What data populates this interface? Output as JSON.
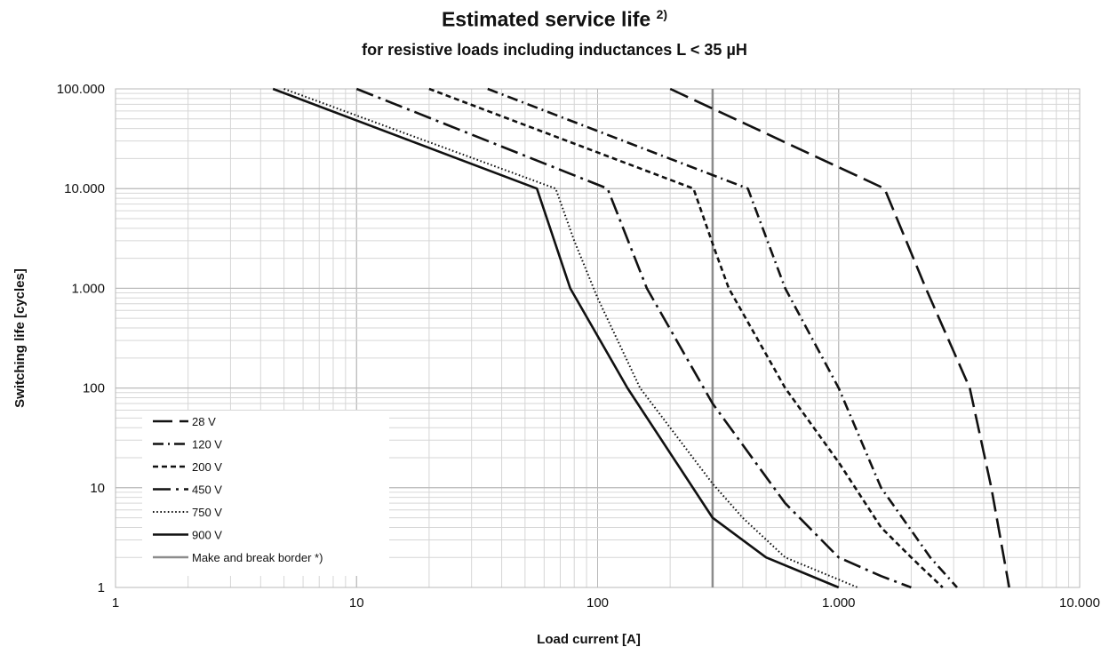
{
  "chart_data": {
    "type": "line",
    "title": "Estimated service life",
    "title_footnote": "2)",
    "subtitle": "for resistive loads including inductances L < 35 µH",
    "xlabel": "Load current [A]",
    "ylabel": "Switching life [cycles]",
    "xscale": "log",
    "yscale": "log",
    "xlim": [
      1,
      10000
    ],
    "ylim": [
      1,
      100000
    ],
    "x_ticks": [
      1,
      10,
      100,
      1000,
      10000
    ],
    "x_tick_labels": [
      "1",
      "10",
      "100",
      "1.000",
      "10.000"
    ],
    "y_ticks": [
      1,
      10,
      100,
      1000,
      10000,
      100000
    ],
    "y_tick_labels": [
      "1",
      "10",
      "100",
      "1.000",
      "10.000",
      "100.000"
    ],
    "grid": true,
    "legend_position": "bottom-left",
    "series": [
      {
        "name": "28 V",
        "dash": "long-dash",
        "points": [
          [
            200,
            100000
          ],
          [
            1550,
            10000
          ],
          [
            2300,
            1000
          ],
          [
            3500,
            100
          ],
          [
            4300,
            10
          ],
          [
            5100,
            1
          ]
        ]
      },
      {
        "name": "120 V",
        "dash": "dash-dot",
        "points": [
          [
            35,
            100000
          ],
          [
            420,
            10000
          ],
          [
            600,
            1000
          ],
          [
            1000,
            100
          ],
          [
            1500,
            10
          ],
          [
            2400,
            2
          ],
          [
            3100,
            1
          ]
        ]
      },
      {
        "name": "200 V",
        "dash": "short-dash",
        "points": [
          [
            20,
            100000
          ],
          [
            250,
            10000
          ],
          [
            305,
            2500
          ],
          [
            350,
            1000
          ],
          [
            600,
            100
          ],
          [
            1000,
            18
          ],
          [
            1500,
            4
          ],
          [
            2000,
            2
          ],
          [
            2700,
            1
          ]
        ]
      },
      {
        "name": "450 V",
        "dash": "long-dash-dot",
        "points": [
          [
            10,
            100000
          ],
          [
            110,
            10000
          ],
          [
            160,
            1000
          ],
          [
            300,
            70
          ],
          [
            600,
            7
          ],
          [
            1000,
            2
          ],
          [
            1500,
            1.3
          ],
          [
            2000,
            1
          ]
        ]
      },
      {
        "name": "750 V",
        "dash": "dotted",
        "points": [
          [
            5,
            100000
          ],
          [
            67,
            10000
          ],
          [
            80,
            3000
          ],
          [
            100,
            800
          ],
          [
            150,
            100
          ],
          [
            300,
            11
          ],
          [
            400,
            5
          ],
          [
            600,
            2
          ],
          [
            1200,
            1
          ]
        ]
      },
      {
        "name": "900 V",
        "dash": "solid",
        "points": [
          [
            4.5,
            100000
          ],
          [
            56,
            10000
          ],
          [
            77,
            1000
          ],
          [
            133,
            100
          ],
          [
            300,
            5
          ],
          [
            500,
            2
          ],
          [
            1000,
            1
          ]
        ]
      }
    ],
    "reference_lines": [
      {
        "name": "Make and break border *)",
        "orientation": "vertical",
        "x": 300,
        "color": "#8c8c8c"
      }
    ]
  }
}
